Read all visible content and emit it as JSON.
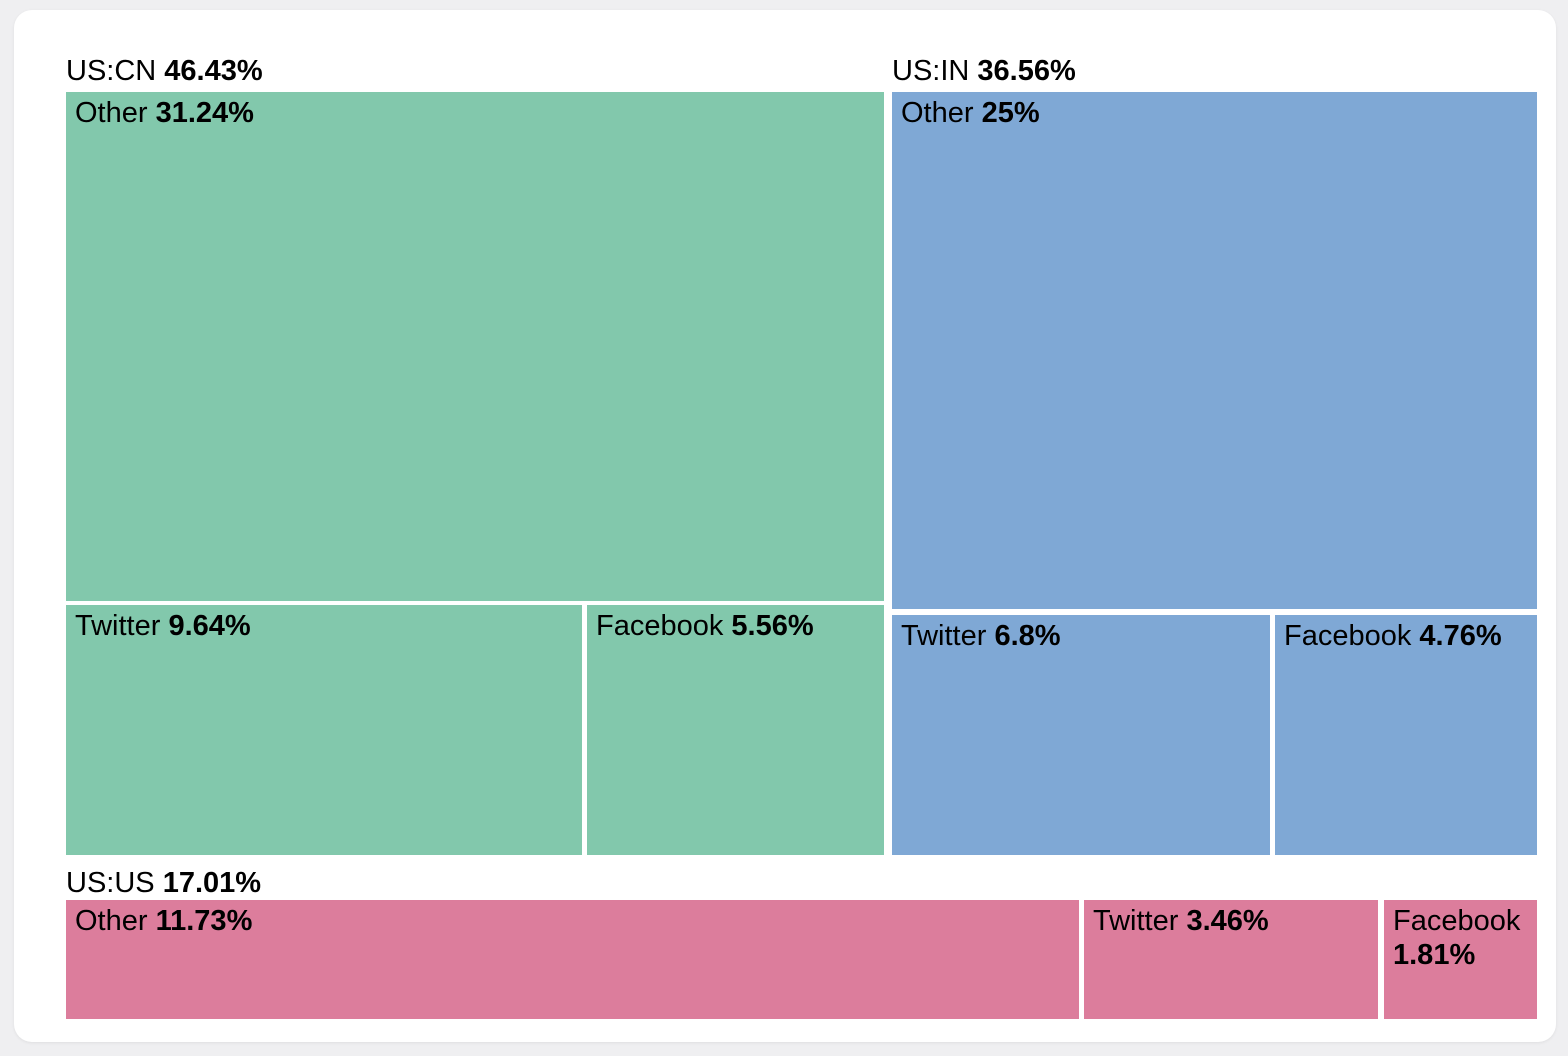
{
  "chart_data": {
    "type": "treemap",
    "unit": "%",
    "legend": "none",
    "groups": [
      {
        "id": "us-cn",
        "label": "US:CN",
        "value": 46.43,
        "value_label": "46.43%",
        "color": "#82C8AC",
        "children": [
          {
            "name": "Other",
            "value": 31.24,
            "value_label": "31.24%"
          },
          {
            "name": "Twitter",
            "value": 9.64,
            "value_label": "9.64%"
          },
          {
            "name": "Facebook",
            "value": 5.56,
            "value_label": "5.56%"
          }
        ]
      },
      {
        "id": "us-in",
        "label": "US:IN",
        "value": 36.56,
        "value_label": "36.56%",
        "color": "#7FA8D5",
        "children": [
          {
            "name": "Other",
            "value": 25,
            "value_label": "25%"
          },
          {
            "name": "Twitter",
            "value": 6.8,
            "value_label": "6.8%"
          },
          {
            "name": "Facebook",
            "value": 4.76,
            "value_label": "4.76%"
          }
        ]
      },
      {
        "id": "us-us",
        "label": "US:US",
        "value": 17.01,
        "value_label": "17.01%",
        "color": "#DC7D9C",
        "children": [
          {
            "name": "Other",
            "value": 11.73,
            "value_label": "11.73%"
          },
          {
            "name": "Twitter",
            "value": 3.46,
            "value_label": "3.46%"
          },
          {
            "name": "Facebook",
            "value": 1.81,
            "value_label": "1.81%"
          }
        ]
      }
    ]
  }
}
